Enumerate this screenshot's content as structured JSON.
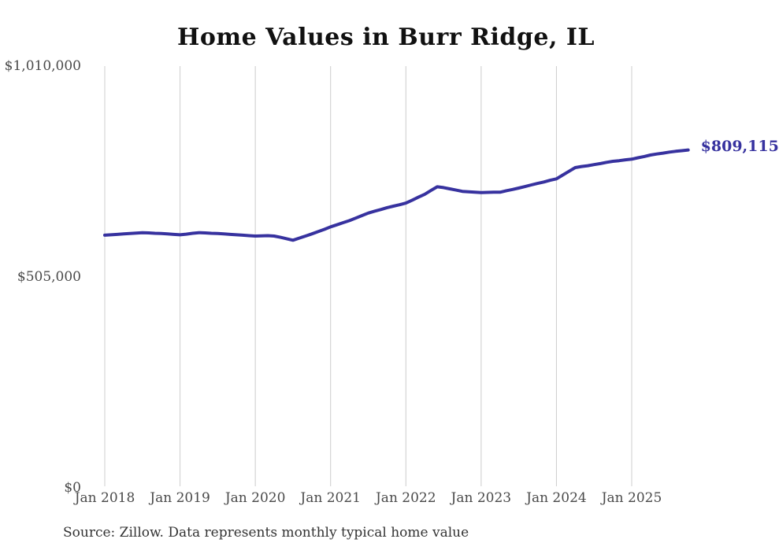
{
  "chart": {
    "title": "Home Values in Burr Ridge, IL",
    "end_label": "$809,115",
    "source": "Source: Zillow. Data represents monthly typical home value"
  },
  "colors": {
    "background": "#ffffff",
    "line": "#37329f",
    "end_label": "#37329f",
    "gridline": "#cccccc",
    "title_text": "#111111",
    "axis_text": "#4a4a4a",
    "source_text": "#333333"
  },
  "chart_data": {
    "type": "line",
    "title": "Home Values in Burr Ridge, IL",
    "xlabel": "",
    "ylabel": "",
    "ylim": [
      0,
      1010000
    ],
    "grid": "vertical-only",
    "legend": "none",
    "x_tick_labels": [
      "Jan 2018",
      "Jan 2019",
      "Jan 2020",
      "Jan 2021",
      "Jan 2022",
      "Jan 2023",
      "Jan 2024",
      "Jan 2025"
    ],
    "x_tick_month_indices": [
      0,
      12,
      24,
      36,
      48,
      60,
      72,
      84
    ],
    "y_ticks": [
      {
        "value": 0,
        "label": "$0"
      },
      {
        "value": 505000,
        "label": "$505,000"
      },
      {
        "value": 1010000,
        "label": "$1,010,000"
      }
    ],
    "months": [
      "2018-01",
      "2018-02",
      "2018-03",
      "2018-04",
      "2018-05",
      "2018-06",
      "2018-07",
      "2018-08",
      "2018-09",
      "2018-10",
      "2018-11",
      "2018-12",
      "2019-01",
      "2019-02",
      "2019-03",
      "2019-04",
      "2019-05",
      "2019-06",
      "2019-07",
      "2019-08",
      "2019-09",
      "2019-10",
      "2019-11",
      "2019-12",
      "2020-01",
      "2020-02",
      "2020-03",
      "2020-04",
      "2020-05",
      "2020-06",
      "2020-07",
      "2020-08",
      "2020-09",
      "2020-10",
      "2020-11",
      "2020-12",
      "2021-01",
      "2021-02",
      "2021-03",
      "2021-04",
      "2021-05",
      "2021-06",
      "2021-07",
      "2021-08",
      "2021-09",
      "2021-10",
      "2021-11",
      "2021-12",
      "2022-01",
      "2022-02",
      "2022-03",
      "2022-04",
      "2022-05",
      "2022-06",
      "2022-07",
      "2022-08",
      "2022-09",
      "2022-10",
      "2022-11",
      "2022-12",
      "2023-01",
      "2023-02",
      "2023-03",
      "2023-04",
      "2023-05",
      "2023-06",
      "2023-07",
      "2023-08",
      "2023-09",
      "2023-10",
      "2023-11",
      "2023-12",
      "2024-01",
      "2024-02",
      "2024-03",
      "2024-04",
      "2024-05",
      "2024-06",
      "2024-07",
      "2024-08",
      "2024-09",
      "2024-10",
      "2024-11",
      "2024-12",
      "2025-01",
      "2025-02",
      "2025-03",
      "2025-04",
      "2025-05",
      "2025-06",
      "2025-07",
      "2025-08",
      "2025-09",
      "2025-10"
    ],
    "values": [
      605000,
      606000,
      607000,
      608000,
      609000,
      610000,
      611000,
      610500,
      609500,
      609000,
      608000,
      607000,
      606000,
      607500,
      609500,
      611000,
      610500,
      609500,
      609000,
      608000,
      607000,
      606000,
      605000,
      604000,
      603000,
      603500,
      604000,
      603000,
      600000,
      596500,
      593000,
      598000,
      603000,
      608000,
      613500,
      619000,
      625000,
      630000,
      635000,
      640000,
      646000,
      652000,
      658000,
      662500,
      666500,
      671000,
      674500,
      678000,
      682000,
      689000,
      696000,
      703000,
      712000,
      721000,
      719000,
      716000,
      713000,
      710000,
      709000,
      708000,
      707000,
      707500,
      708000,
      708000,
      711500,
      714500,
      718000,
      721500,
      725500,
      729000,
      732500,
      736500,
      740000,
      749000,
      758000,
      767000,
      769500,
      771500,
      774000,
      776500,
      779500,
      782000,
      783500,
      785500,
      787000,
      790500,
      793500,
      797000,
      799500,
      801500,
      804000,
      806000,
      807500,
      809115
    ],
    "final_point": {
      "month": "2025-10",
      "value": 809115,
      "label": "$809,115"
    }
  }
}
